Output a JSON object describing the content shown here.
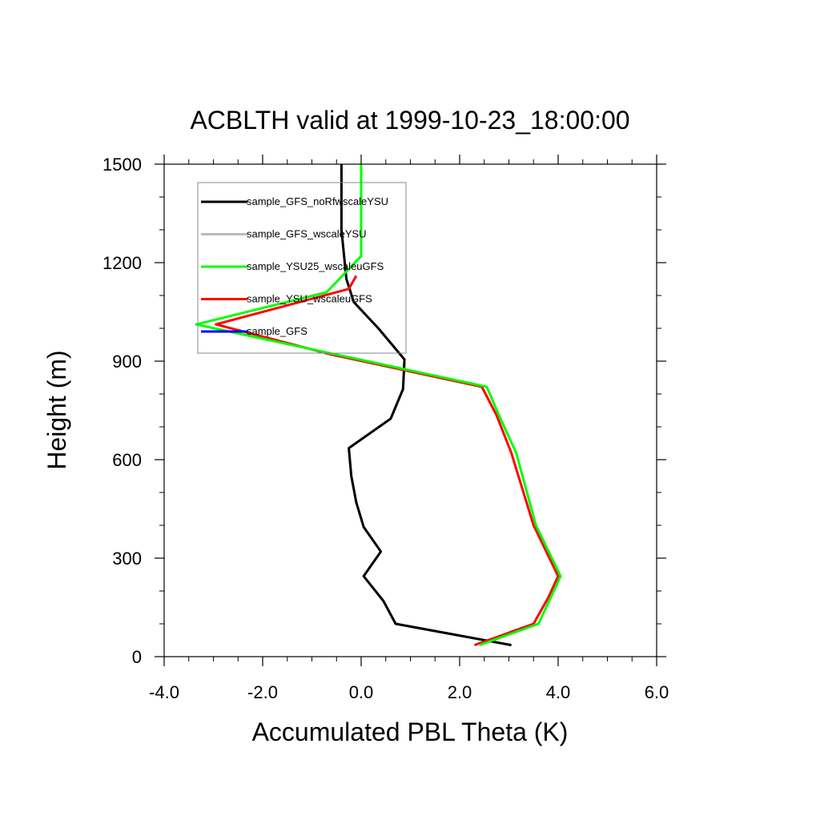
{
  "chart_data": {
    "type": "line",
    "title": "ACBLTH valid at 1999-10-23_18:00:00",
    "xlabel": "Accumulated PBL Theta (K)",
    "ylabel": "Height (m)",
    "xlim": [
      -4.0,
      6.0
    ],
    "ylim": [
      0,
      1500
    ],
    "x_ticks": [
      -4.0,
      -2.0,
      0.0,
      2.0,
      4.0,
      6.0
    ],
    "x_tick_labels": [
      "-4.0",
      "-2.0",
      "0.0",
      "2.0",
      "4.0",
      "6.0"
    ],
    "y_ticks": [
      0,
      300,
      600,
      900,
      1200,
      1500
    ],
    "y_tick_labels": [
      "0",
      "300",
      "600",
      "900",
      "1200",
      "1500"
    ],
    "grid": false,
    "legend_placement": "top-left",
    "series": [
      {
        "name": "sample_GFS_noRfwscaleYSU",
        "color": "#000000",
        "points": [
          [
            3.05,
            35
          ],
          [
            0.7,
            100
          ],
          [
            0.45,
            170
          ],
          [
            0.05,
            245
          ],
          [
            0.4,
            320
          ],
          [
            0.05,
            395
          ],
          [
            -0.1,
            470
          ],
          [
            -0.2,
            550
          ],
          [
            -0.25,
            635
          ],
          [
            0.6,
            725
          ],
          [
            0.85,
            815
          ],
          [
            0.88,
            905
          ],
          [
            0.35,
            1000
          ],
          [
            -0.15,
            1080
          ],
          [
            -0.3,
            1150
          ],
          [
            -0.4,
            1300
          ],
          [
            -0.4,
            1500
          ]
        ]
      },
      {
        "name": "sample_GFS_wscaleYSU",
        "color": "#bbbbbb",
        "points": [
          [
            3.05,
            35
          ],
          [
            0.7,
            100
          ],
          [
            0.45,
            170
          ],
          [
            0.05,
            245
          ],
          [
            0.4,
            320
          ],
          [
            0.05,
            395
          ],
          [
            -0.1,
            470
          ],
          [
            -0.2,
            550
          ],
          [
            -0.25,
            635
          ],
          [
            0.6,
            725
          ],
          [
            0.85,
            815
          ],
          [
            0.88,
            905
          ],
          [
            0.35,
            1000
          ],
          [
            -0.15,
            1080
          ],
          [
            -0.3,
            1150
          ],
          [
            -0.4,
            1300
          ],
          [
            -0.4,
            1500
          ]
        ]
      },
      {
        "name": "sample_YSU25_wscaleuGFS",
        "color": "#00ff00",
        "points": [
          [
            2.4,
            35
          ],
          [
            3.6,
            100
          ],
          [
            3.85,
            180
          ],
          [
            4.05,
            245
          ],
          [
            3.55,
            400
          ],
          [
            3.15,
            620
          ],
          [
            2.8,
            735
          ],
          [
            2.55,
            822
          ],
          [
            -0.5,
            920
          ],
          [
            -3.35,
            1012
          ],
          [
            -0.7,
            1110
          ],
          [
            0.0,
            1220
          ],
          [
            0.0,
            1500
          ]
        ]
      },
      {
        "name": "sample_YSU_wscaleuGFS",
        "color": "#ff0000",
        "points": [
          [
            2.3,
            35
          ],
          [
            3.5,
            100
          ],
          [
            3.8,
            180
          ],
          [
            4.0,
            245
          ],
          [
            3.5,
            400
          ],
          [
            3.05,
            620
          ],
          [
            2.75,
            735
          ],
          [
            2.45,
            822
          ],
          [
            -0.6,
            920
          ],
          [
            -2.95,
            1012
          ],
          [
            -0.25,
            1120
          ],
          [
            -0.1,
            1160
          ]
        ]
      },
      {
        "name": "sample_GFS",
        "color": "#0000ff",
        "points": []
      }
    ]
  }
}
